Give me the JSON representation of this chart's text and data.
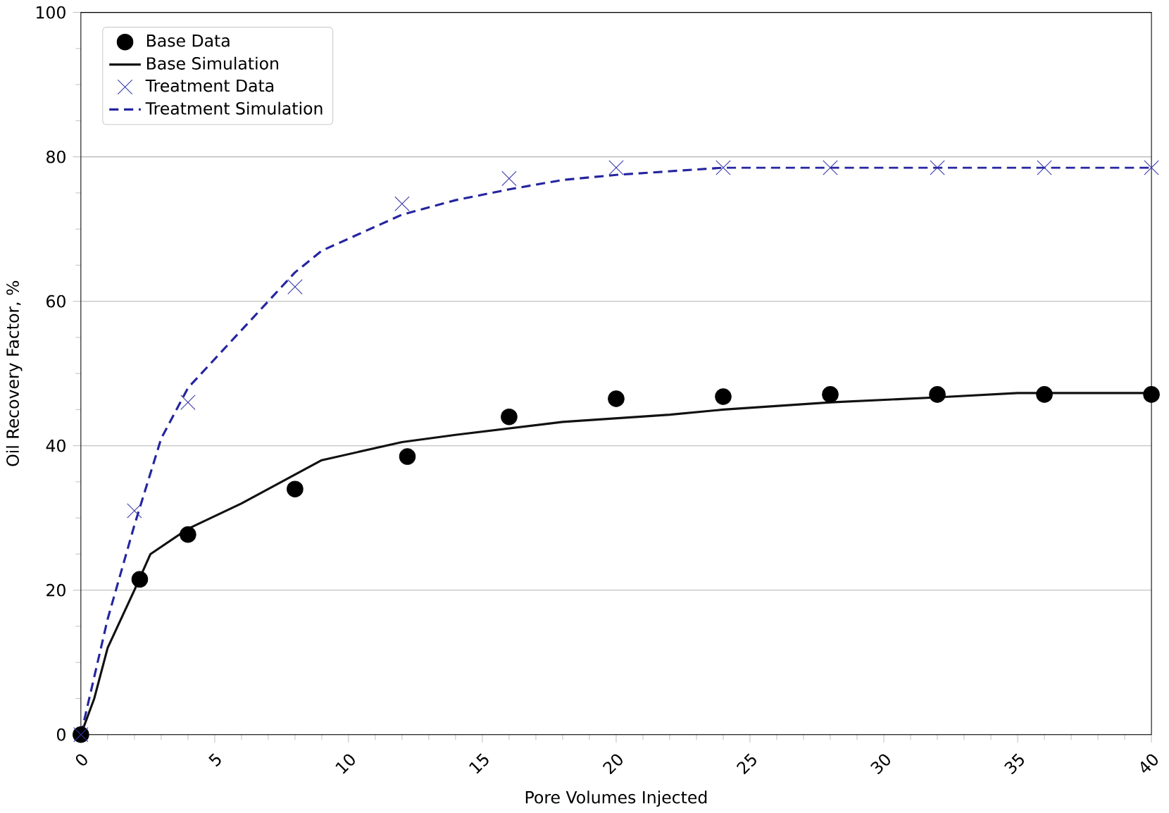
{
  "chart_data": {
    "type": "line",
    "xlabel": "Pore Volumes Injected",
    "ylabel": "Oil Recovery Factor, %",
    "xlim": [
      0,
      40
    ],
    "ylim": [
      0,
      100
    ],
    "xticks": [
      0,
      5,
      10,
      15,
      20,
      25,
      30,
      35,
      40
    ],
    "yticks": [
      0,
      20,
      40,
      60,
      80,
      100
    ],
    "grid": "y",
    "legend": "top left",
    "series": [
      {
        "name": "Base Data",
        "type": "scatter",
        "marker": "circle",
        "color": "#000000",
        "x": [
          0,
          2.2,
          4,
          8,
          12.2,
          16,
          20,
          24,
          28,
          32,
          36,
          40
        ],
        "values": [
          0,
          21.5,
          27.7,
          34,
          38.5,
          44,
          46.5,
          46.8,
          47.1,
          47.1,
          47.1,
          47.1
        ]
      },
      {
        "name": "Base Simulation",
        "type": "line",
        "line_style": "solid",
        "color": "#111111",
        "x": [
          0,
          0.5,
          1,
          2,
          2.6,
          4,
          6,
          8,
          9,
          12,
          14,
          18,
          22,
          24,
          28,
          32,
          35,
          40
        ],
        "values": [
          0,
          5,
          12,
          20,
          25,
          28.5,
          32,
          36,
          38,
          40.5,
          41.5,
          43.3,
          44.3,
          45,
          46,
          46.7,
          47.3,
          47.3
        ]
      },
      {
        "name": "Treatment Data",
        "type": "scatter",
        "marker": "cross",
        "color": "#3333aa",
        "x": [
          0,
          2,
          4,
          8,
          12,
          16,
          20,
          24,
          28,
          32,
          36,
          40
        ],
        "values": [
          0,
          31,
          46,
          62,
          73.5,
          77,
          78.5,
          78.5,
          78.5,
          78.5,
          78.5,
          78.5
        ]
      },
      {
        "name": "Treatment Simulation",
        "type": "line",
        "line_style": "dashed",
        "color": "#2525a0",
        "x": [
          0,
          0.5,
          1,
          2,
          3,
          4,
          6,
          8,
          9,
          12,
          14,
          16,
          18,
          20,
          24,
          40
        ],
        "values": [
          0,
          8,
          16,
          29,
          41,
          48,
          56,
          64,
          67,
          72,
          74,
          75.5,
          76.8,
          77.5,
          78.5,
          78.5
        ]
      }
    ]
  }
}
